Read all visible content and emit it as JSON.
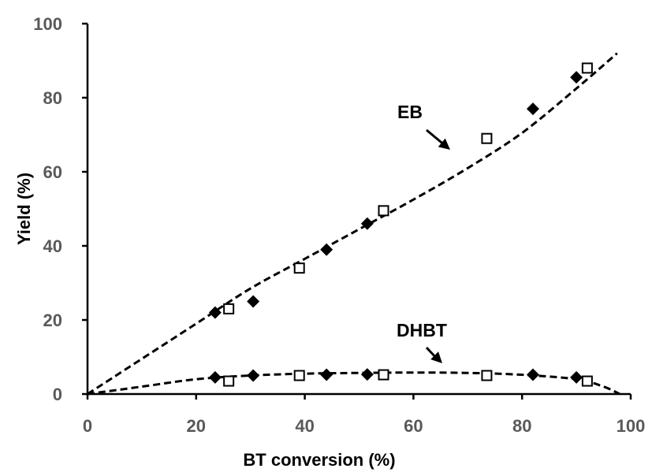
{
  "chart_data": {
    "type": "scatter",
    "title": "",
    "xlabel": "BT conversion (%)",
    "ylabel": "Yield (%)",
    "xlim": [
      0,
      100
    ],
    "ylim": [
      0,
      100
    ],
    "xticks": [
      "0",
      "20",
      "40",
      "60",
      "80",
      "100"
    ],
    "yticks": [
      "0",
      "20",
      "40",
      "60",
      "80",
      "100"
    ],
    "grid": false,
    "legend": "none",
    "annotations": [
      {
        "text": "EB",
        "points_to": [
          68,
          65
        ]
      },
      {
        "text": "DHBT",
        "points_to": [
          67,
          5.5
        ]
      }
    ],
    "series": [
      {
        "marker": "diamond-filled",
        "x": [
          23.5,
          30.5,
          44,
          51.5,
          82,
          90
        ],
        "y": [
          22,
          25,
          39,
          46,
          77,
          85.5
        ]
      },
      {
        "marker": "square-open",
        "x": [
          26,
          39,
          54.5,
          73.5,
          92
        ],
        "y": [
          23,
          34,
          49.5,
          69,
          88
        ]
      },
      {
        "marker": "diamond-filled",
        "x": [
          23.5,
          30.5,
          44,
          51.5,
          82,
          90
        ],
        "y": [
          4.5,
          5,
          5.2,
          5.3,
          5.2,
          4.5
        ]
      },
      {
        "marker": "square-open",
        "x": [
          26,
          39,
          54.5,
          73.5,
          92
        ],
        "y": [
          3.5,
          5,
          5.2,
          5,
          3.5
        ]
      },
      {
        "line": "dashed",
        "x": [
          0,
          10,
          20,
          30,
          40,
          50,
          60,
          70,
          80,
          90,
          97.5
        ],
        "y": [
          0,
          9.5,
          19,
          28.5,
          36.5,
          44.5,
          52.5,
          61,
          70.5,
          82.5,
          92
        ]
      },
      {
        "line": "dashed",
        "x": [
          0,
          10,
          20,
          30,
          40,
          50,
          60,
          70,
          80,
          90,
          95,
          98
        ],
        "y": [
          0,
          2,
          4,
          5,
          5.5,
          5.7,
          5.8,
          5.7,
          5.2,
          4,
          2,
          0
        ]
      }
    ]
  }
}
